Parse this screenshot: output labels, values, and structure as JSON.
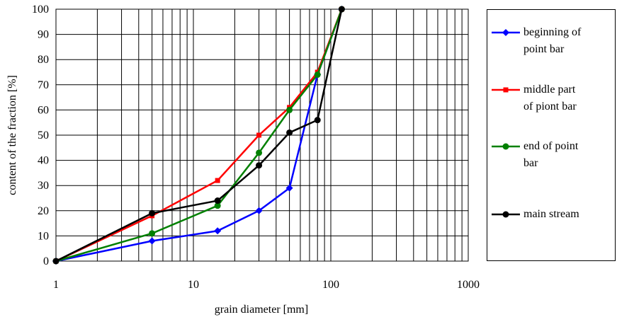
{
  "chart_data": {
    "type": "line",
    "xscale": "log",
    "xlim": [
      1,
      1000
    ],
    "ylim": [
      0,
      100
    ],
    "xticks": [
      "1",
      "10",
      "100",
      "1000"
    ],
    "yticks": [
      "0",
      "10",
      "20",
      "30",
      "40",
      "50",
      "60",
      "70",
      "80",
      "90",
      "100"
    ],
    "xlabel": "grain diameter [mm]",
    "ylabel": "content of the fraction [%]",
    "grid": true,
    "legend_position": "right",
    "series": [
      {
        "name": "beginning of point bar",
        "legend_lines": [
          "beginning of",
          "point bar"
        ],
        "color": "#0000ff",
        "marker": "diamond",
        "x": [
          1,
          5,
          15,
          30,
          50,
          80,
          120
        ],
        "y": [
          0,
          8,
          12,
          20,
          29,
          74,
          100
        ]
      },
      {
        "name": "middle part of piont bar",
        "legend_lines": [
          "middle part",
          "of piont bar"
        ],
        "color": "#ff0000",
        "marker": "square",
        "x": [
          1,
          5,
          15,
          30,
          50,
          80,
          120
        ],
        "y": [
          0,
          18,
          32,
          50,
          61,
          75,
          100
        ]
      },
      {
        "name": "end of point bar",
        "legend_lines": [
          "end of point",
          "bar"
        ],
        "color": "#008000",
        "marker": "circle",
        "x": [
          1,
          5,
          15,
          30,
          50,
          80,
          120
        ],
        "y": [
          0,
          11,
          22,
          43,
          60,
          74,
          100
        ]
      },
      {
        "name": "main stream",
        "legend_lines": [
          "main stream"
        ],
        "color": "#000000",
        "marker": "circle",
        "x": [
          1,
          5,
          15,
          30,
          50,
          80,
          120
        ],
        "y": [
          0,
          19,
          24,
          38,
          51,
          56,
          100
        ]
      }
    ]
  }
}
